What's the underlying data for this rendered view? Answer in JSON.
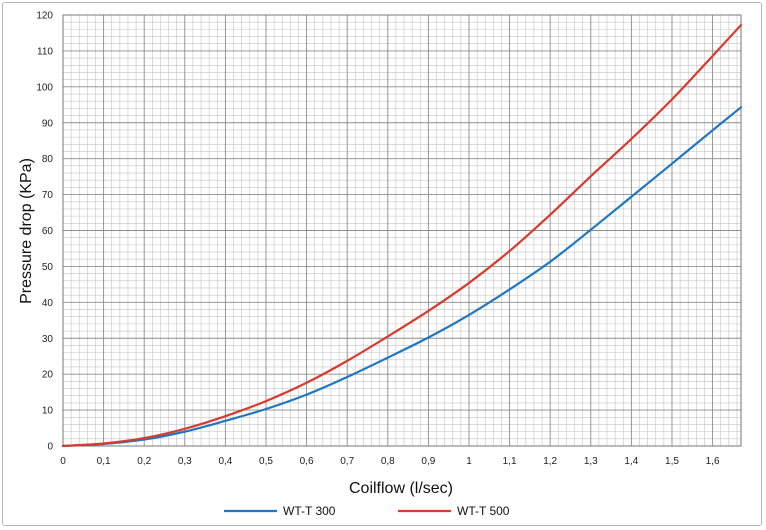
{
  "chart_data": {
    "type": "line",
    "title": "",
    "xlabel": "Coilflow (l/sec)",
    "ylabel": "Pressure drop (KPa)",
    "xlim": [
      0,
      1.67
    ],
    "ylim": [
      0,
      120
    ],
    "x_ticks": [
      "0",
      "0,1",
      "0,2",
      "0,3",
      "0,4",
      "0,5",
      "0,6",
      "0,7",
      "0,8",
      "0,9",
      "1",
      "1,1",
      "1,2",
      "1,3",
      "1,4",
      "1,5",
      "1,6"
    ],
    "y_ticks": [
      "0",
      "10",
      "20",
      "30",
      "40",
      "50",
      "60",
      "70",
      "80",
      "90",
      "100",
      "110",
      "120"
    ],
    "grid": true,
    "legend_position": "bottom",
    "series": [
      {
        "name": "WT-T 300",
        "color": "#1f77c0",
        "x": [
          0,
          0.1,
          0.2,
          0.3,
          0.4,
          0.5,
          0.6,
          0.7,
          0.8,
          0.9,
          1.0,
          1.1,
          1.2,
          1.3,
          1.4,
          1.5,
          1.6,
          1.67
        ],
        "y": [
          0,
          0.6,
          1.8,
          4.0,
          7.0,
          10.3,
          14.3,
          19.2,
          24.6,
          30.2,
          36.5,
          43.6,
          51.3,
          60.2,
          69.4,
          78.6,
          87.9,
          94.3
        ]
      },
      {
        "name": "WT-T 500",
        "color": "#d83a2e",
        "x": [
          0,
          0.1,
          0.2,
          0.3,
          0.4,
          0.5,
          0.6,
          0.7,
          0.8,
          0.9,
          1.0,
          1.1,
          1.2,
          1.3,
          1.4,
          1.5,
          1.6,
          1.67
        ],
        "y": [
          0,
          0.7,
          2.2,
          4.8,
          8.3,
          12.5,
          17.6,
          23.7,
          30.5,
          37.6,
          45.4,
          54.3,
          64.4,
          75.1,
          85.5,
          96.5,
          108.6,
          117.2
        ]
      }
    ]
  }
}
